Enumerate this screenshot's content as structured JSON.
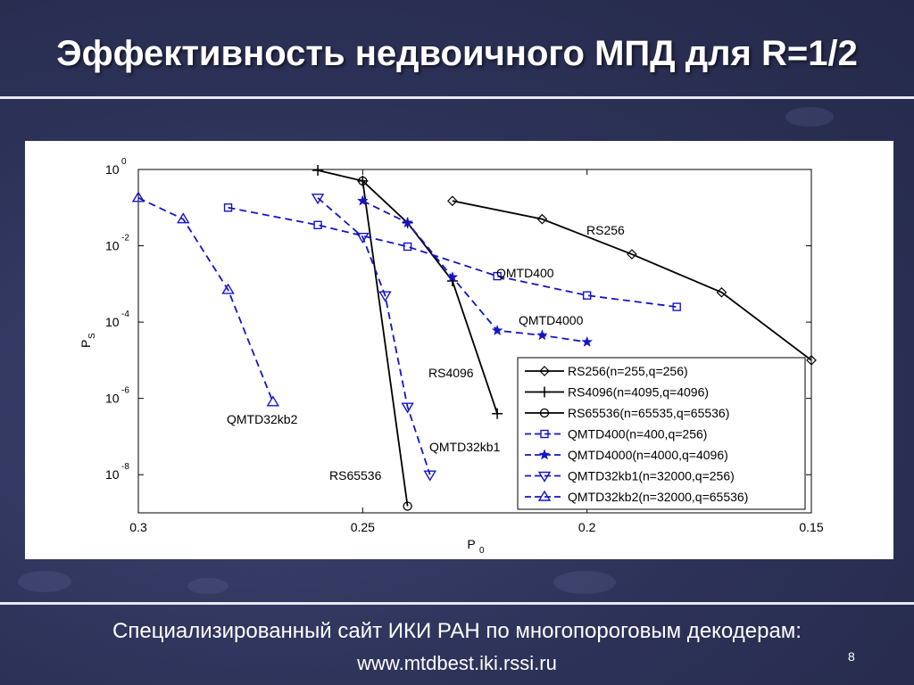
{
  "slide": {
    "title": "Эффективность недвоичного МПД для R=1/2",
    "footer_line1": "Специализированный сайт ИКИ РАН по многопороговым декодерам:",
    "footer_line2": "www.mtdbest.iki.rssi.ru",
    "page_number": "8",
    "colors": {
      "background": "#2c3157",
      "rule": "#e8e8f0",
      "text": "#ffffff"
    }
  },
  "chart_data": {
    "type": "line",
    "xlabel": "P",
    "xlabel_sub": "0",
    "ylabel": "P",
    "ylabel_sub": "S",
    "x_reversed": true,
    "xlim": [
      0.3,
      0.15
    ],
    "y_log": true,
    "ylim": [
      1e-09,
      1
    ],
    "x_ticks": [
      {
        "value": 0.3,
        "label": "0.3"
      },
      {
        "value": 0.25,
        "label": "0.25"
      },
      {
        "value": 0.2,
        "label": "0.2"
      },
      {
        "value": 0.15,
        "label": "0.15"
      }
    ],
    "y_ticks": [
      {
        "value": 1,
        "base": "10",
        "exp": "0"
      },
      {
        "value": 0.01,
        "base": "10",
        "exp": "-2"
      },
      {
        "value": 0.0001,
        "base": "10",
        "exp": "-4"
      },
      {
        "value": 1e-06,
        "base": "10",
        "exp": "-6"
      },
      {
        "value": 1e-08,
        "base": "10",
        "exp": "-8"
      }
    ],
    "grid": false,
    "legend_placement": "bottom-right",
    "series": [
      {
        "name": "RS256(n=255,q=256)",
        "label": "RS256",
        "color": "#000000",
        "dash": "solid",
        "marker": "diamond",
        "x": [
          0.23,
          0.21,
          0.19,
          0.17,
          0.15
        ],
        "y": [
          0.15,
          0.05,
          0.006,
          0.0006,
          1e-05
        ]
      },
      {
        "name": "RS4096(n=4095,q=4096)",
        "label": "RS4096",
        "color": "#000000",
        "dash": "solid",
        "marker": "plus",
        "x": [
          0.26,
          0.25,
          0.24,
          0.23,
          0.22
        ],
        "y": [
          0.95,
          0.5,
          0.04,
          0.0012,
          4e-07
        ]
      },
      {
        "name": "RS65536(n=65535,q=65536)",
        "label": "RS65536",
        "color": "#000000",
        "dash": "solid",
        "marker": "circle",
        "x": [
          0.25,
          0.24
        ],
        "y": [
          0.5,
          1.5e-09
        ]
      },
      {
        "name": "QMTD400(n=400,q=256)",
        "label": "QMTD400",
        "color": "#1515c8",
        "dash": "dashed",
        "marker": "square",
        "x": [
          0.28,
          0.26,
          0.24,
          0.22,
          0.2,
          0.18
        ],
        "y": [
          0.1,
          0.035,
          0.0095,
          0.0016,
          0.0005,
          0.00025
        ]
      },
      {
        "name": "QMTD4000(n=4000,q=4096)",
        "label": "QMTD4000",
        "color": "#1515c8",
        "dash": "dashed",
        "marker": "star",
        "x": [
          0.25,
          0.24,
          0.23,
          0.22,
          0.21,
          0.2
        ],
        "y": [
          0.15,
          0.04,
          0.0015,
          6e-05,
          4.5e-05,
          3e-05
        ]
      },
      {
        "name": "QMTD32kb1(n=32000,q=256)",
        "label": "QMTD32kb1",
        "color": "#1515c8",
        "dash": "dashed",
        "marker": "triangle-down",
        "x": [
          0.26,
          0.25,
          0.245,
          0.24,
          0.235
        ],
        "y": [
          0.18,
          0.017,
          0.0005,
          6e-07,
          1e-08
        ]
      },
      {
        "name": "QMTD32kb2(n=32000,q=65536)",
        "label": "QMTD32kb2",
        "color": "#1515c8",
        "dash": "dashed",
        "marker": "triangle-up",
        "x": [
          0.3,
          0.29,
          0.28,
          0.27
        ],
        "y": [
          0.18,
          0.05,
          0.0007,
          8e-07
        ]
      }
    ]
  }
}
